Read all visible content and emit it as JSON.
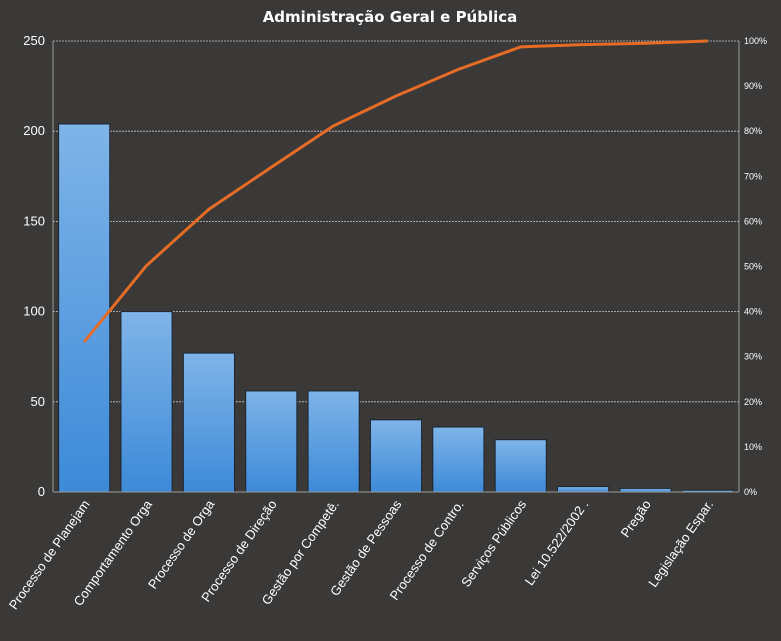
{
  "chart_data": {
    "type": "bar",
    "title": "Administração  Geral  e Pública",
    "categories": [
      "Processo de Planejam",
      "Comportamento  Orga",
      "Processo de Orga",
      "Processo de Direção",
      "Gestão por Competê.",
      "Gestão de Pessoas",
      "Processo de Contro.",
      "Serviços Públicos",
      "Lei 10.522/2002 .",
      "Pregão",
      "Legislação Espar."
    ],
    "series": [
      {
        "type": "bar",
        "axis": "left",
        "color": "#4f97df",
        "values": [
          204,
          100,
          77,
          56,
          56,
          40,
          36,
          29,
          3,
          2,
          1
        ]
      },
      {
        "type": "line",
        "axis": "right",
        "color": "#e46c26",
        "values": [
          33.3,
          50.2,
          62.7,
          72.0,
          81.2,
          87.8,
          93.7,
          98.7,
          99.2,
          99.5,
          100
        ]
      }
    ],
    "ylim": [
      0,
      250
    ],
    "yticks": [
      "0",
      "50",
      "100",
      "150",
      "200",
      "250"
    ],
    "y2lim": [
      0,
      100
    ],
    "y2ticks": [
      "0%",
      "10%",
      "20%",
      "30%",
      "40%",
      "50%",
      "60%",
      "70%",
      "80%",
      "90%",
      "100%"
    ],
    "grid": true
  }
}
